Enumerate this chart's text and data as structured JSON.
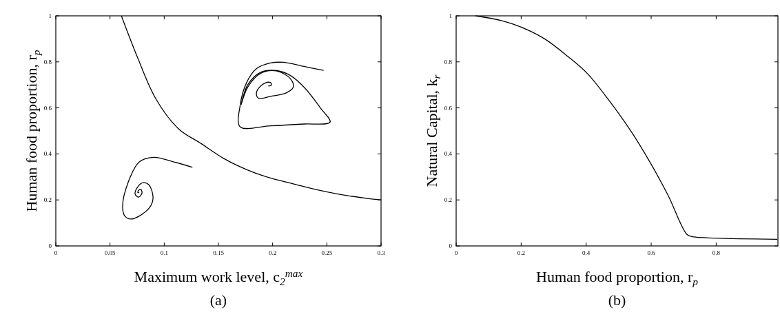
{
  "chart_data": [
    {
      "type": "line",
      "xlabel": "Maximum work level, c$_{2}$$^{max}$",
      "ylabel": "Human food proportion, r$_{p}$",
      "annotations": [
        "(a)"
      ],
      "xlim": [
        0,
        0.3
      ],
      "ylim": [
        0,
        1
      ],
      "xticks": [
        0,
        0.05,
        0.1,
        0.15,
        0.2,
        0.25,
        0.3
      ],
      "yticks": [
        0,
        0.2,
        0.4,
        0.6,
        0.8,
        1
      ],
      "series": [
        {
          "color": "#000000",
          "x": [
            0.0605,
            0.0753,
            0.0922,
            0.113,
            0.134,
            0.155,
            0.177,
            0.198,
            0.219,
            0.24,
            0.261,
            0.29,
            0.3
          ],
          "values": [
            1,
            0.82,
            0.64,
            0.51,
            0.445,
            0.38,
            0.33,
            0.295,
            0.27,
            0.245,
            0.225,
            0.205,
            0.2
          ]
        },
        {
          "color": "#000000",
          "x": [
            0.126,
            0.109,
            0.09,
            0.077,
            0.067,
            0.0616,
            0.0637,
            0.069,
            0.077,
            0.087,
            0.0897,
            0.086,
            0.0806,
            0.0753,
            0.0732,
            0.0764,
            0.0795,
            0.0785,
            0.0764,
            0.0757,
            0.077
          ],
          "values": [
            0.342,
            0.365,
            0.385,
            0.365,
            0.28,
            0.17,
            0.13,
            0.117,
            0.13,
            0.17,
            0.21,
            0.265,
            0.275,
            0.255,
            0.225,
            0.212,
            0.23,
            0.245,
            0.242,
            0.232,
            0.232
          ]
        },
        {
          "color": "#000000",
          "x": [
            0.247,
            0.229,
            0.21,
            0.198,
            0.185,
            0.176,
            0.17,
            0.17,
            0.198,
            0.229,
            0.253,
            0.244,
            0.23,
            0.2167,
            0.204,
            0.189,
            0.177,
            0.171,
            0.177,
            0.189,
            0.204,
            0.2167,
            0.219,
            0.2125,
            0.198,
            0.187,
            0.185,
            0.187,
            0.193,
            0.198,
            0.199,
            0.196
          ],
          "values": [
            0.763,
            0.78,
            0.798,
            0.795,
            0.77,
            0.71,
            0.61,
            0.518,
            0.522,
            0.53,
            0.538,
            0.6,
            0.685,
            0.74,
            0.762,
            0.755,
            0.7,
            0.615,
            0.69,
            0.75,
            0.76,
            0.725,
            0.69,
            0.665,
            0.65,
            0.642,
            0.66,
            0.685,
            0.708,
            0.71,
            0.7,
            0.695
          ]
        }
      ]
    },
    {
      "type": "line",
      "xlabel": "Human food proportion, r$_{p}$",
      "ylabel": "Natural Capital, k$_{r}$",
      "annotations": [
        "(b)"
      ],
      "xlim": [
        0,
        0.99
      ],
      "ylim": [
        0,
        1
      ],
      "xticks": [
        0,
        0.2,
        0.4,
        0.6,
        0.8
      ],
      "yticks": [
        0,
        0.2,
        0.4,
        0.6,
        0.8,
        1
      ],
      "series": [
        {
          "color": "#000000",
          "x": [
            0.06,
            0.141,
            0.2,
            0.272,
            0.345,
            0.404,
            0.469,
            0.542,
            0.6,
            0.652,
            0.71,
            0.725,
            0.798,
            0.988
          ],
          "values": [
            1,
            0.979,
            0.951,
            0.9,
            0.822,
            0.749,
            0.635,
            0.49,
            0.355,
            0.22,
            0.05,
            0.041,
            0.034,
            0.029
          ]
        }
      ]
    }
  ]
}
